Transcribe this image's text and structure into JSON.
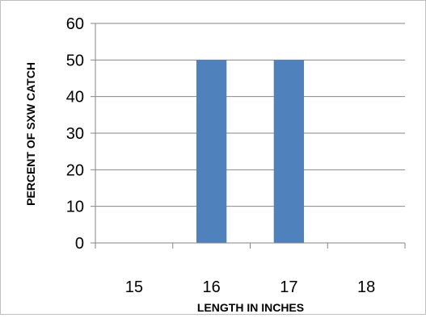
{
  "chart_data": {
    "type": "bar",
    "categories": [
      "15",
      "16",
      "17",
      "18"
    ],
    "values": [
      0,
      50,
      50,
      0
    ],
    "title": "",
    "xlabel": "LENGTH IN INCHES",
    "ylabel": "PERCENT OF SXW CATCH",
    "ylim": [
      0,
      60
    ],
    "yticks": [
      "0",
      "10",
      "20",
      "30",
      "40",
      "50",
      "60"
    ],
    "grid": "horizontal",
    "legend": "none",
    "bar_color": "#4f81bd",
    "gridline_color": "#868686"
  }
}
